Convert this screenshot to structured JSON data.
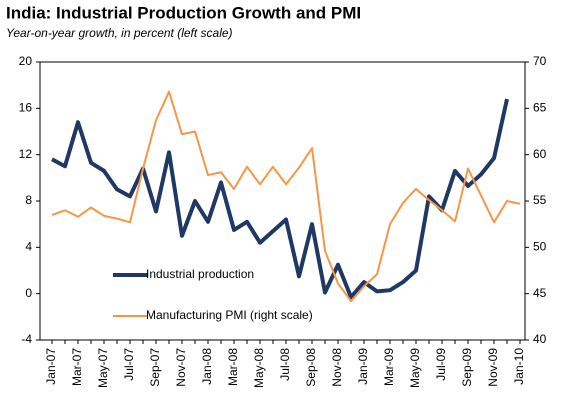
{
  "chart_data": {
    "type": "line",
    "title": "India: Industrial Production Growth and PMI",
    "subtitle": "Year-on-year growth, in percent (left scale)",
    "categories": [
      "Jan-07",
      null,
      "Mar-07",
      null,
      "May-07",
      null,
      "Jul-07",
      null,
      "Sep-07",
      null,
      "Nov-07",
      null,
      "Jan-08",
      null,
      "Mar-08",
      null,
      "May-08",
      null,
      "Jul-08",
      null,
      "Sep-08",
      null,
      "Nov-08",
      null,
      "Jan-09",
      null,
      "Mar-09",
      null,
      "May-09",
      null,
      "Jul-09",
      null,
      "Sep-09",
      null,
      "Nov-09",
      null,
      "Jan-10"
    ],
    "series": [
      {
        "name": "Industrial production",
        "color": "#1f3864",
        "axis": "y",
        "values": [
          11.6,
          11.0,
          14.8,
          11.3,
          10.6,
          9.0,
          8.4,
          10.8,
          7.1,
          12.2,
          5.0,
          8.0,
          6.2,
          9.6,
          5.5,
          6.2,
          4.4,
          5.4,
          6.4,
          1.5,
          6.0,
          0.1,
          2.5,
          -0.3,
          1.0,
          0.2,
          0.3,
          1.0,
          2.0,
          8.4,
          7.2,
          10.6,
          9.3,
          10.3,
          11.7,
          16.8,
          null
        ]
      },
      {
        "name": "Manufacturing PMI (right scale)",
        "color": "#f79646",
        "axis": "y2",
        "values": [
          53.5,
          54.0,
          53.3,
          54.3,
          53.4,
          53.1,
          52.7,
          58.5,
          63.7,
          66.8,
          62.2,
          62.5,
          57.8,
          58.1,
          56.3,
          58.7,
          56.8,
          58.7,
          56.8,
          58.6,
          60.7,
          49.6,
          46.1,
          44.2,
          45.8,
          47.1,
          52.5,
          54.8,
          56.3,
          55.1,
          54.0,
          52.8,
          58.5,
          55.6,
          52.7,
          55.0,
          54.7
        ]
      }
    ],
    "ylim": [
      -4,
      20
    ],
    "yticks": [
      -4,
      0,
      4,
      8,
      12,
      16,
      20
    ],
    "y2lim": [
      40,
      70
    ],
    "y2ticks": [
      40,
      45,
      50,
      55,
      60,
      65,
      70
    ]
  }
}
